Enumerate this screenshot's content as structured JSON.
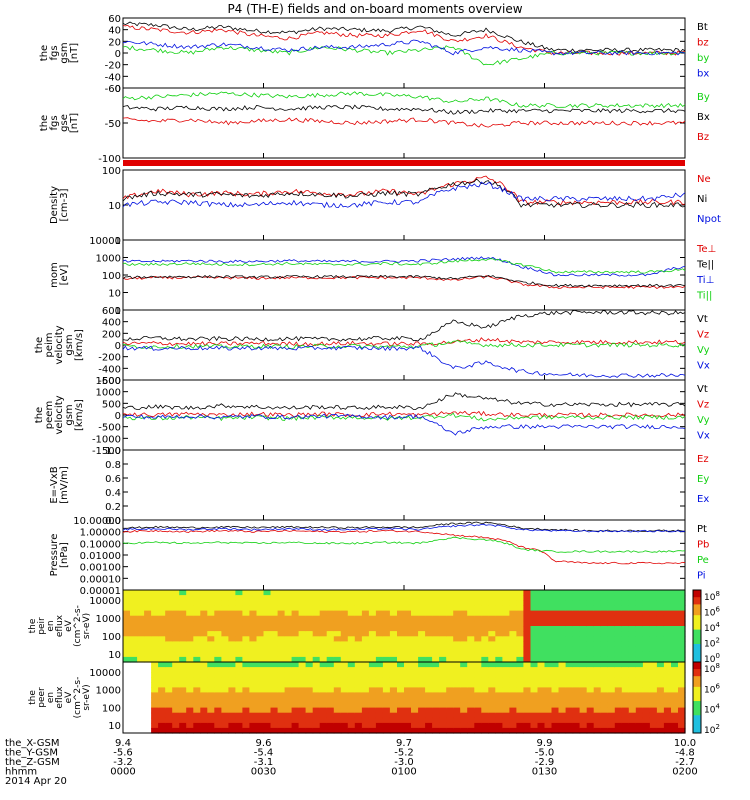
{
  "title": "P4 (TH-E) fields and on-board moments overview",
  "colors": {
    "black": "#000000",
    "red": "#e00000",
    "green": "#10d010",
    "blue": "#0010e0"
  },
  "chart_data": {
    "type": "line",
    "title": "P4 (TH-E) fields and on-board moments overview",
    "x": {
      "label": "hhmm",
      "ticks": [
        "0000",
        "0030",
        "0100",
        "0130",
        "0200"
      ],
      "range": [
        "0000",
        "0200"
      ]
    },
    "ephemeris": {
      "date": "2014 Apr 20",
      "rows": [
        {
          "label": "the_X-GSM",
          "values": [
            "9.4",
            "9.6",
            "9.7",
            "9.9",
            "10.0"
          ]
        },
        {
          "label": "the_Y-GSM",
          "values": [
            "-5.6",
            "-5.4",
            "-5.2",
            "-5.0",
            "-4.8"
          ]
        },
        {
          "label": "the_Z-GSM",
          "values": [
            "-3.2",
            "-3.1",
            "-3.0",
            "-2.9",
            "-2.7"
          ]
        },
        {
          "label": "hhmm",
          "values": [
            "0000",
            "0030",
            "0100",
            "0130",
            "0200"
          ]
        }
      ]
    },
    "panels": [
      {
        "ylabel": [
          "the",
          "fgs",
          "gsm",
          "[nT]"
        ],
        "scale": "linear",
        "yrange": [
          -60,
          60
        ],
        "yticks": [
          "60",
          "40",
          "20",
          "0",
          "-20",
          "-40",
          "-60"
        ],
        "series": [
          {
            "name": "Bt",
            "color": "black",
            "values": [
              50,
              48,
              40,
              45,
              38,
              35,
              42,
              40,
              38,
              45,
              30,
              40,
              20,
              5,
              5,
              5,
              5,
              5
            ]
          },
          {
            "name": "bz",
            "color": "red",
            "values": [
              45,
              40,
              35,
              40,
              30,
              25,
              35,
              30,
              30,
              40,
              20,
              30,
              10,
              0,
              0,
              0,
              0,
              0
            ]
          },
          {
            "name": "by",
            "color": "green",
            "values": [
              10,
              5,
              0,
              10,
              5,
              0,
              10,
              5,
              0,
              5,
              10,
              -20,
              -10,
              0,
              0,
              0,
              0,
              0
            ]
          },
          {
            "name": "bx",
            "color": "blue",
            "values": [
              20,
              15,
              10,
              15,
              10,
              5,
              10,
              10,
              15,
              20,
              0,
              10,
              5,
              0,
              0,
              0,
              0,
              0
            ]
          }
        ]
      },
      {
        "ylabel": [
          "the",
          "fgs",
          "gse",
          "[nT]"
        ],
        "scale": "linear",
        "yrange": [
          -150,
          50
        ],
        "yticks": [
          "0",
          "-50",
          "-100"
        ],
        "series": [
          {
            "name": "By",
            "color": "green",
            "values": [
              20,
              25,
              30,
              35,
              30,
              25,
              30,
              35,
              30,
              25,
              10,
              20,
              0,
              0,
              0,
              0,
              0,
              0
            ]
          },
          {
            "name": "Bx",
            "color": "black",
            "values": [
              -5,
              -10,
              -5,
              -10,
              -5,
              -10,
              -5,
              -5,
              -10,
              -10,
              -20,
              -15,
              -15,
              -15,
              -15,
              -15,
              -15,
              -15
            ]
          },
          {
            "name": "Bz",
            "color": "red",
            "values": [
              -40,
              -45,
              -40,
              -50,
              -45,
              -40,
              -45,
              -50,
              -45,
              -40,
              -50,
              -60,
              -50,
              -50,
              -50,
              -50,
              -50,
              -50
            ]
          }
        ]
      },
      {
        "ylabel": [
          "Density",
          "[cm-3]"
        ],
        "scale": "log",
        "yrange": [
          1,
          100
        ],
        "yticks": [
          "100",
          "10",
          "1"
        ],
        "series": [
          {
            "name": "Ne",
            "color": "red",
            "values": [
              15,
              25,
              20,
              22,
              20,
              25,
              22,
              20,
              25,
              20,
              40,
              60,
              12,
              12,
              12,
              12,
              12,
              12
            ]
          },
          {
            "name": "Ni",
            "color": "black",
            "values": [
              15,
              22,
              20,
              20,
              18,
              22,
              20,
              18,
              22,
              20,
              40,
              50,
              10,
              10,
              10,
              10,
              10,
              10
            ]
          },
          {
            "name": "Npot",
            "color": "blue",
            "values": [
              10,
              12,
              12,
              10,
              10,
              12,
              10,
              10,
              12,
              12,
              30,
              40,
              15,
              15,
              15,
              15,
              15,
              20
            ]
          }
        ]
      },
      {
        "ylabel": [
          "mom",
          "[eV]"
        ],
        "scale": "log",
        "yrange": [
          1,
          10000
        ],
        "yticks": [
          "10000",
          "1000",
          "100",
          "10",
          "1"
        ],
        "series": [
          {
            "name": "Te⊥",
            "color": "red",
            "values": [
              60,
              70,
              70,
              70,
              65,
              70,
              70,
              70,
              70,
              70,
              50,
              80,
              30,
              20,
              20,
              20,
              20,
              20
            ]
          },
          {
            "name": "Te||",
            "color": "black",
            "values": [
              70,
              80,
              80,
              80,
              75,
              80,
              80,
              80,
              80,
              80,
              60,
              90,
              40,
              25,
              25,
              25,
              25,
              25
            ]
          },
          {
            "name": "Ti⊥",
            "color": "blue",
            "values": [
              600,
              600,
              650,
              600,
              600,
              650,
              600,
              600,
              600,
              650,
              800,
              1000,
              300,
              100,
              100,
              100,
              100,
              300
            ]
          },
          {
            "name": "Ti||",
            "color": "green",
            "values": [
              400,
              400,
              450,
              400,
              400,
              450,
              400,
              400,
              450,
              400,
              600,
              800,
              400,
              150,
              150,
              150,
              150,
              200
            ]
          }
        ]
      },
      {
        "ylabel": [
          "the",
          "peim",
          "velocity",
          "gsm",
          "[km/s]"
        ],
        "scale": "linear",
        "yrange": [
          -600,
          600
        ],
        "yticks": [
          "600",
          "400",
          "200",
          "0",
          "-200",
          "-400",
          "-600"
        ],
        "series": [
          {
            "name": "Vt",
            "color": "black",
            "values": [
              100,
              120,
              100,
              110,
              100,
              110,
              100,
              100,
              120,
              100,
              400,
              300,
              500,
              550,
              560,
              560,
              550,
              550
            ]
          },
          {
            "name": "Vz",
            "color": "red",
            "values": [
              20,
              30,
              20,
              20,
              30,
              20,
              20,
              30,
              20,
              20,
              50,
              100,
              50,
              50,
              50,
              50,
              50,
              50
            ]
          },
          {
            "name": "Vy",
            "color": "green",
            "values": [
              -20,
              -30,
              -20,
              -30,
              -20,
              -30,
              -20,
              -20,
              -30,
              -20,
              50,
              0,
              0,
              0,
              0,
              0,
              0,
              0
            ]
          },
          {
            "name": "Vx",
            "color": "blue",
            "values": [
              -50,
              -60,
              -50,
              -60,
              -50,
              -60,
              -50,
              -50,
              -60,
              -50,
              -400,
              -300,
              -450,
              -500,
              -520,
              -520,
              -520,
              -520
            ]
          }
        ]
      },
      {
        "ylabel": [
          "the",
          "peem",
          "velocity",
          "gsm",
          "[km/s]"
        ],
        "scale": "linear",
        "yrange": [
          -1500,
          1500
        ],
        "yticks": [
          "1500",
          "1000",
          "500",
          "0",
          "-500",
          "-1000",
          "-1500"
        ],
        "series": [
          {
            "name": "Vt",
            "color": "black",
            "values": [
              300,
              350,
              300,
              400,
              350,
              300,
              350,
              300,
              350,
              300,
              900,
              700,
              500,
              450,
              450,
              450,
              450,
              450
            ]
          },
          {
            "name": "Vz",
            "color": "red",
            "values": [
              50,
              0,
              50,
              0,
              50,
              0,
              50,
              0,
              50,
              0,
              100,
              50,
              0,
              0,
              0,
              0,
              0,
              0
            ]
          },
          {
            "name": "Vy",
            "color": "green",
            "values": [
              -100,
              -150,
              -100,
              -150,
              -100,
              -150,
              -100,
              -100,
              -150,
              -100,
              0,
              -200,
              -100,
              -100,
              -100,
              -100,
              -100,
              -100
            ]
          },
          {
            "name": "Vx",
            "color": "blue",
            "values": [
              -50,
              -100,
              -50,
              -100,
              -50,
              -100,
              -50,
              -50,
              -100,
              -50,
              -800,
              -500,
              -500,
              -500,
              -500,
              -500,
              -500,
              -500
            ]
          }
        ]
      },
      {
        "ylabel": [
          "E=-VxB",
          "[mV/m]"
        ],
        "scale": "linear",
        "yrange": [
          0,
          1
        ],
        "yticks": [
          "1.0",
          "0.8",
          "0.6",
          "0.4",
          "0.2",
          "0.0"
        ],
        "series": [
          {
            "name": "Ez",
            "color": "red",
            "values": []
          },
          {
            "name": "Ey",
            "color": "green",
            "values": []
          },
          {
            "name": "Ex",
            "color": "blue",
            "values": []
          }
        ]
      },
      {
        "ylabel": [
          "Pressure",
          "[nPa]"
        ],
        "scale": "log",
        "yrange": [
          1e-05,
          10
        ],
        "yticks": [
          "10.00000",
          "1.00000",
          "0.10000",
          "0.01000",
          "0.00100",
          "0.00010",
          "0.00001"
        ],
        "series": [
          {
            "name": "Pt",
            "color": "black",
            "values": [
              2,
              2.5,
              2.2,
              2.5,
              2.3,
              2.5,
              2.3,
              2.2,
              2.5,
              2.3,
              5,
              6,
              2,
              1.5,
              1.2,
              1.2,
              1.2,
              1.2
            ]
          },
          {
            "name": "Pb",
            "color": "red",
            "values": [
              1,
              1.2,
              1,
              1.2,
              1,
              1.2,
              1,
              1,
              1.2,
              1,
              0.5,
              0.3,
              0.05,
              0.003,
              0.002,
              0.002,
              0.002,
              0.002
            ]
          },
          {
            "name": "Pe",
            "color": "green",
            "values": [
              0.1,
              0.12,
              0.1,
              0.12,
              0.1,
              0.12,
              0.1,
              0.1,
              0.12,
              0.1,
              0.3,
              0.2,
              0.03,
              0.02,
              0.02,
              0.02,
              0.02,
              0.02
            ]
          },
          {
            "name": "Pi",
            "color": "blue",
            "values": [
              1.5,
              1.8,
              1.5,
              1.8,
              1.5,
              1.8,
              1.5,
              1.5,
              1.8,
              1.5,
              3,
              4,
              1.5,
              1.2,
              1.1,
              1.1,
              1.1,
              1.1
            ]
          }
        ]
      }
    ],
    "spectrograms": [
      {
        "ylabel": [
          "the",
          "peir",
          "en",
          "eflux",
          "eV",
          "(cm^2-s-",
          "sr-eV)"
        ],
        "yrange": [
          5,
          30000
        ],
        "yticks": [
          "10000",
          "1000",
          "100",
          "10"
        ],
        "colorbar_ticks": [
          "10^8",
          "10^6",
          "10^4",
          "10^2",
          "10^0"
        ]
      },
      {
        "ylabel": [
          "the",
          "peer",
          "en",
          "eflux",
          "eV",
          "(cm^2-s-",
          "sr-eV)"
        ],
        "yrange": [
          5,
          30000
        ],
        "yticks": [
          "10000",
          "1000",
          "100",
          "10"
        ],
        "colorbar_ticks": [
          "10^8",
          "10^6",
          "10^4",
          "10^2"
        ]
      }
    ]
  }
}
